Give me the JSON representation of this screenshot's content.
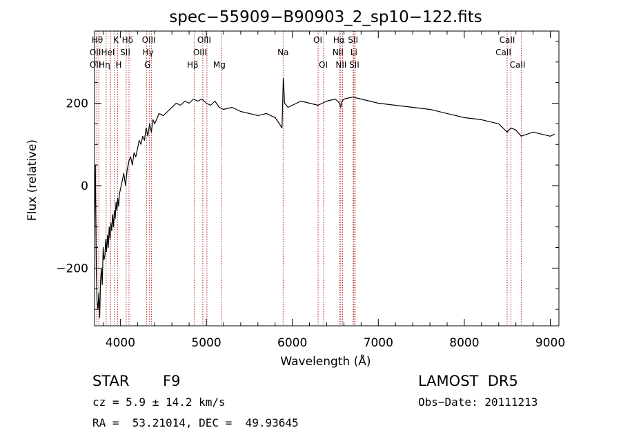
{
  "chart_data": {
    "type": "line",
    "title": "spec−55909−B90903_2_sp10−122.fits",
    "xlabel": "Wavelength (Å)",
    "ylabel": "Flux (relative)",
    "xlim": [
      3700,
      9100
    ],
    "ylim": [
      -340,
      375
    ],
    "xticks": [
      4000,
      5000,
      6000,
      7000,
      8000,
      9000
    ],
    "xtick_labels": [
      "4000",
      "5000",
      "6000",
      "7000",
      "8000",
      "9000"
    ],
    "yticks": [
      -200,
      0,
      200
    ],
    "ytick_labels": [
      "−200",
      "0",
      "200"
    ],
    "grid": false,
    "line_color": "#000000",
    "marker_color": "#b22222",
    "series": [
      {
        "x": [
          3700,
          3710,
          3720,
          3730,
          3740,
          3750,
          3760,
          3770,
          3780,
          3790,
          3800,
          3810,
          3820,
          3830,
          3840,
          3850,
          3860,
          3870,
          3880,
          3890,
          3900,
          3910,
          3920,
          3930,
          3940,
          3950,
          3960,
          3970,
          3980,
          3990,
          4000,
          4020,
          4040,
          4060,
          4080,
          4100,
          4120,
          4140,
          4160,
          4180,
          4200,
          4220,
          4240,
          4260,
          4280,
          4300,
          4320,
          4340,
          4360,
          4380,
          4400,
          4450,
          4500,
          4550,
          4600,
          4650,
          4700,
          4750,
          4800,
          4850,
          4900,
          4950,
          5000,
          5050,
          5100,
          5150,
          5200,
          5300,
          5400,
          5500,
          5600,
          5700,
          5800,
          5850,
          5880,
          5890,
          5895,
          5900,
          5910,
          5950,
          6000,
          6100,
          6200,
          6300,
          6400,
          6500,
          6550,
          6563,
          6580,
          6600,
          6700,
          6800,
          6900,
          7000,
          7200,
          7400,
          7600,
          7800,
          8000,
          8200,
          8400,
          8498,
          8542,
          8600,
          8662,
          8800,
          9000,
          9050
        ],
        "y": [
          -100,
          50,
          -200,
          -280,
          -300,
          -260,
          -320,
          -230,
          -200,
          -240,
          -150,
          -180,
          -170,
          -130,
          -160,
          -120,
          -150,
          -100,
          -130,
          -90,
          -110,
          -70,
          -100,
          -60,
          -80,
          -40,
          -60,
          -30,
          -50,
          -20,
          -10,
          10,
          30,
          0,
          40,
          60,
          70,
          50,
          80,
          70,
          90,
          110,
          100,
          120,
          110,
          140,
          120,
          150,
          130,
          160,
          150,
          175,
          170,
          180,
          190,
          200,
          195,
          205,
          200,
          210,
          205,
          210,
          200,
          195,
          205,
          190,
          185,
          190,
          180,
          175,
          170,
          175,
          165,
          150,
          140,
          215,
          260,
          245,
          200,
          190,
          195,
          205,
          200,
          195,
          205,
          210,
          200,
          190,
          205,
          210,
          215,
          210,
          205,
          200,
          195,
          190,
          185,
          175,
          165,
          160,
          150,
          130,
          140,
          135,
          120,
          130,
          120,
          125
        ]
      }
    ],
    "line_markers": [
      {
        "label": "Hθ",
        "x": 3750,
        "row": 0,
        "align": "right"
      },
      {
        "label": "K",
        "x": 3933,
        "row": 0,
        "align": "right"
      },
      {
        "label": "Hδ",
        "x": 4101,
        "row": 0,
        "align": "right"
      },
      {
        "label": "OII",
        "x": 3727,
        "row": 1,
        "align": "right"
      },
      {
        "label": "OII",
        "x": 3727,
        "row": 2,
        "align": "right"
      },
      {
        "label": "HeI",
        "x": 3888,
        "row": 1,
        "align": "right"
      },
      {
        "label": "Hη",
        "x": 3835,
        "row": 2,
        "align": "right"
      },
      {
        "label": "SII",
        "x": 4068,
        "row": 1,
        "align": "right"
      },
      {
        "label": "H",
        "x": 3968,
        "row": 2,
        "align": "right"
      },
      {
        "label": "OIII",
        "x": 4363,
        "row": 0,
        "align": "right"
      },
      {
        "label": "Hγ",
        "x": 4340,
        "row": 1,
        "align": "right"
      },
      {
        "label": "G",
        "x": 4304,
        "row": 2,
        "align": "right"
      },
      {
        "label": "OIII",
        "x": 5007,
        "row": 0,
        "align": "right"
      },
      {
        "label": "OIII",
        "x": 4959,
        "row": 1,
        "align": "right"
      },
      {
        "label": "Hβ",
        "x": 4861,
        "row": 2,
        "align": "right"
      },
      {
        "label": "Mg",
        "x": 5175,
        "row": 2,
        "align": "right"
      },
      {
        "label": "Na",
        "x": 5893,
        "row": 1,
        "align": "center"
      },
      {
        "label": "OI",
        "x": 6300,
        "row": 0,
        "align": "right"
      },
      {
        "label": "OI",
        "x": 6364,
        "row": 2,
        "align": "right"
      },
      {
        "label": "Hα",
        "x": 6563,
        "row": 0,
        "align": "right"
      },
      {
        "label": "NII",
        "x": 6548,
        "row": 1,
        "align": "right"
      },
      {
        "label": "NII",
        "x": 6584,
        "row": 2,
        "align": "right"
      },
      {
        "label": "SII",
        "x": 6717,
        "row": 0,
        "align": "right"
      },
      {
        "label": "Li",
        "x": 6708,
        "row": 1,
        "align": "right"
      },
      {
        "label": "SII",
        "x": 6731,
        "row": 2,
        "align": "right"
      },
      {
        "label": "CaII",
        "x": 8542,
        "row": 0,
        "align": "right"
      },
      {
        "label": "CaII",
        "x": 8498,
        "row": 1,
        "align": "right"
      },
      {
        "label": "CaII",
        "x": 8662,
        "row": 2,
        "align": "right"
      }
    ]
  },
  "footer": {
    "obj_class": "STAR",
    "subclass": "F9",
    "survey": "LAMOST  DR5",
    "redshift": "cz = 5.9 ± 14.2 km/s",
    "obs_date": "Obs−Date: 20111213",
    "coords": "RA =  53.21014, DEC =  49.93645"
  }
}
